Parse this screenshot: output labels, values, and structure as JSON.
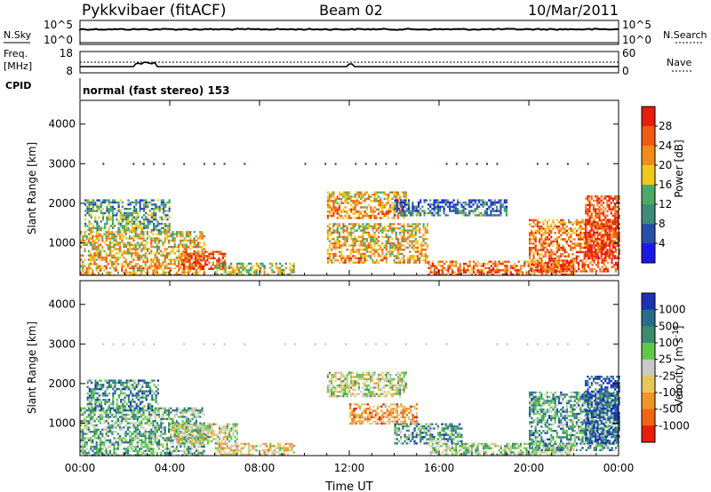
{
  "header": {
    "station": "Pykkvibaer (fitACF)",
    "beam": "Beam 02",
    "date": "10/Mar/2011"
  },
  "nsky_panel": {
    "left_label": "N.Sky",
    "left_ticks": [
      "10^5",
      "10^0"
    ],
    "right_ticks": [
      "10^5",
      "10^0"
    ],
    "right_label": "N.Search"
  },
  "freq_panel": {
    "left_label_1": "Freq.",
    "left_label_2": "[MHz]",
    "left_ticks": [
      "18",
      "8"
    ],
    "right_ticks": [
      "60",
      "0"
    ],
    "right_label": "Nave"
  },
  "cpid_panel": {
    "label": "CPID",
    "text": "normal (fast stereo) 153"
  },
  "colors": {
    "power_scale": [
      "#1e18e6",
      "#2850a8",
      "#3c8c78",
      "#4caa64",
      "#f0c818",
      "#f08c18",
      "#f05a12",
      "#e61e0a"
    ],
    "velocity_scale": [
      "#1a32b4",
      "#286e8c",
      "#3c8c6a",
      "#60c846",
      "#c8c8c8",
      "#e6c85a",
      "#f09628",
      "#f06414",
      "#e61e0a"
    ]
  },
  "chart_data": [
    {
      "type": "heatmap",
      "title": "",
      "xlabel": "",
      "ylabel": "Slant Range [km]",
      "x_ticks": [
        "00:00",
        "04:00",
        "08:00",
        "12:00",
        "16:00",
        "20:00",
        "00:00"
      ],
      "y_ticks": [
        "1000",
        "2000",
        "3000",
        "4000"
      ],
      "xlim_hours": [
        0,
        24
      ],
      "ylim_km": [
        180,
        4600
      ],
      "colorbar": {
        "label": "Power [dB]",
        "ticks": [
          "4",
          "8",
          "12",
          "16",
          "20",
          "24",
          "28"
        ],
        "range": [
          0,
          30
        ]
      },
      "regions": [
        {
          "t0": 0.0,
          "t1": 5.5,
          "r0": 200,
          "r1": 1300,
          "level": 0.55
        },
        {
          "t0": 0.2,
          "t1": 4.0,
          "r0": 1300,
          "r1": 2100,
          "level": 0.3
        },
        {
          "t0": 4.5,
          "t1": 6.5,
          "r0": 350,
          "r1": 800,
          "level": 0.8
        },
        {
          "t0": 6.0,
          "t1": 9.5,
          "r0": 200,
          "r1": 500,
          "level": 0.45
        },
        {
          "t0": 11.0,
          "t1": 14.5,
          "r0": 1600,
          "r1": 2300,
          "level": 0.6
        },
        {
          "t0": 11.0,
          "t1": 15.5,
          "r0": 500,
          "r1": 1500,
          "level": 0.55
        },
        {
          "t0": 14.0,
          "t1": 19.0,
          "r0": 1700,
          "r1": 2100,
          "level": 0.2
        },
        {
          "t0": 15.5,
          "t1": 22.0,
          "r0": 200,
          "r1": 550,
          "level": 0.7
        },
        {
          "t0": 20.0,
          "t1": 24.0,
          "r0": 300,
          "r1": 1600,
          "level": 0.7
        },
        {
          "t0": 22.5,
          "t1": 24.0,
          "r0": 600,
          "r1": 2200,
          "level": 0.85
        }
      ]
    },
    {
      "type": "heatmap",
      "title": "",
      "xlabel": "Time UT",
      "ylabel": "Slant Range [km]",
      "x_ticks": [
        "00:00",
        "04:00",
        "08:00",
        "12:00",
        "16:00",
        "20:00",
        "00:00"
      ],
      "y_ticks": [
        "1000",
        "2000",
        "3000",
        "4000"
      ],
      "xlim_hours": [
        0,
        24
      ],
      "ylim_km": [
        180,
        4600
      ],
      "colorbar": {
        "label": "Velocity [m s^-1]",
        "ticks": [
          "1000",
          "500",
          "100",
          "25",
          "-25",
          "-100",
          "-500",
          "-1000"
        ],
        "range": [
          -1200,
          1200
        ]
      },
      "regions": [
        {
          "t0": 0.0,
          "t1": 5.5,
          "r0": 200,
          "r1": 1400,
          "level": 0.35
        },
        {
          "t0": 0.3,
          "t1": 3.5,
          "r0": 1300,
          "r1": 2100,
          "level": 0.25
        },
        {
          "t0": 4.0,
          "t1": 7.0,
          "r0": 500,
          "r1": 1000,
          "level": 0.5
        },
        {
          "t0": 6.0,
          "t1": 9.5,
          "r0": 200,
          "r1": 500,
          "level": 0.6
        },
        {
          "t0": 11.0,
          "t1": 14.5,
          "r0": 1700,
          "r1": 2300,
          "level": 0.5
        },
        {
          "t0": 12.0,
          "t1": 15.0,
          "r0": 1000,
          "r1": 1500,
          "level": 0.7
        },
        {
          "t0": 14.0,
          "t1": 17.0,
          "r0": 500,
          "r1": 1000,
          "level": 0.3
        },
        {
          "t0": 15.5,
          "t1": 22.0,
          "r0": 200,
          "r1": 500,
          "level": 0.45
        },
        {
          "t0": 20.0,
          "t1": 24.0,
          "r0": 300,
          "r1": 1800,
          "level": 0.3
        },
        {
          "t0": 22.5,
          "t1": 24.0,
          "r0": 500,
          "r1": 2200,
          "level": 0.1
        }
      ]
    }
  ]
}
